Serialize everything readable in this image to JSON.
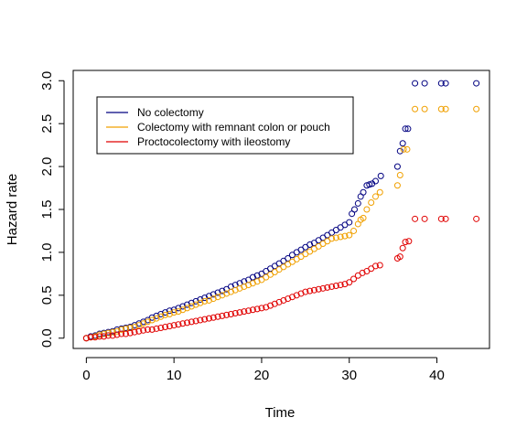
{
  "chart_data": {
    "type": "scatter",
    "title": "",
    "xlabel": "Time",
    "ylabel": "Hazard rate",
    "xlim": [
      -1.5,
      46
    ],
    "ylim": [
      -0.12,
      3.12
    ],
    "xticks": [
      0,
      10,
      20,
      30,
      40
    ],
    "yticks": [
      0.0,
      0.5,
      1.0,
      1.5,
      2.0,
      2.5,
      3.0
    ],
    "xtick_labels": [
      "0",
      "10",
      "20",
      "30",
      "40"
    ],
    "ytick_labels": [
      "0.0",
      "0.5",
      "1.0",
      "1.5",
      "2.0",
      "2.5",
      "3.0"
    ],
    "grid": false,
    "legend": "top-left",
    "series": [
      {
        "name": "No colectomy",
        "color": "#000080",
        "x": [
          0,
          0.5,
          1,
          1.5,
          2,
          2.5,
          3,
          3.5,
          4,
          4.5,
          5,
          5.5,
          6,
          6.5,
          7,
          7.5,
          8,
          8.5,
          9,
          9.5,
          10,
          10.5,
          11,
          11.5,
          12,
          12.5,
          13,
          13.5,
          14,
          14.5,
          15,
          15.5,
          16,
          16.5,
          17,
          17.5,
          18,
          18.5,
          19,
          19.5,
          20,
          20.5,
          21,
          21.5,
          22,
          22.5,
          23,
          23.5,
          24,
          24.5,
          25,
          25.5,
          26,
          26.5,
          27,
          27.5,
          28,
          28.5,
          29,
          29.5,
          30,
          30.3,
          30.6,
          31,
          31.3,
          31.6,
          32,
          32.3,
          32.6,
          33,
          33.6,
          35.5,
          35.8,
          36.1,
          36.4,
          36.7,
          37.5,
          38.6,
          40.5,
          41,
          44.5
        ],
        "y": [
          0,
          0.02,
          0.03,
          0.05,
          0.06,
          0.07,
          0.08,
          0.1,
          0.11,
          0.12,
          0.13,
          0.15,
          0.17,
          0.19,
          0.21,
          0.24,
          0.26,
          0.28,
          0.3,
          0.32,
          0.33,
          0.35,
          0.37,
          0.39,
          0.41,
          0.43,
          0.45,
          0.47,
          0.49,
          0.51,
          0.53,
          0.55,
          0.57,
          0.6,
          0.62,
          0.64,
          0.66,
          0.68,
          0.71,
          0.73,
          0.75,
          0.78,
          0.81,
          0.84,
          0.87,
          0.9,
          0.93,
          0.97,
          1.0,
          1.03,
          1.06,
          1.09,
          1.11,
          1.14,
          1.17,
          1.2,
          1.23,
          1.26,
          1.29,
          1.32,
          1.35,
          1.45,
          1.5,
          1.57,
          1.65,
          1.7,
          1.78,
          1.79,
          1.8,
          1.83,
          1.89,
          2.0,
          2.18,
          2.27,
          2.44,
          2.44,
          2.97,
          2.97,
          2.97,
          2.97,
          2.97
        ]
      },
      {
        "name": "Colectomy with remnant colon or pouch",
        "color": "#f0a000",
        "x": [
          0,
          0.5,
          1,
          1.5,
          2,
          2.5,
          3,
          3.5,
          4,
          4.5,
          5,
          5.5,
          6,
          6.5,
          7,
          7.5,
          8,
          8.5,
          9,
          9.5,
          10,
          10.5,
          11,
          11.5,
          12,
          12.5,
          13,
          13.5,
          14,
          14.5,
          15,
          15.5,
          16,
          16.5,
          17,
          17.5,
          18,
          18.5,
          19,
          19.5,
          20,
          20.5,
          21,
          21.5,
          22,
          22.5,
          23,
          23.5,
          24,
          24.5,
          25,
          25.5,
          26,
          26.5,
          27,
          27.5,
          28,
          28.5,
          29,
          29.5,
          30,
          30.5,
          31,
          31.3,
          31.6,
          32,
          32.5,
          33,
          33.5,
          35.5,
          35.8,
          36.2,
          36.6,
          37.5,
          38.6,
          40.5,
          41,
          44.5
        ],
        "y": [
          0,
          0.01,
          0.02,
          0.04,
          0.05,
          0.06,
          0.07,
          0.08,
          0.1,
          0.11,
          0.12,
          0.13,
          0.15,
          0.17,
          0.19,
          0.21,
          0.23,
          0.25,
          0.27,
          0.28,
          0.3,
          0.31,
          0.33,
          0.35,
          0.37,
          0.39,
          0.41,
          0.43,
          0.44,
          0.46,
          0.48,
          0.5,
          0.52,
          0.54,
          0.56,
          0.58,
          0.6,
          0.62,
          0.64,
          0.66,
          0.68,
          0.71,
          0.74,
          0.77,
          0.8,
          0.83,
          0.86,
          0.89,
          0.92,
          0.95,
          0.98,
          1.01,
          1.04,
          1.07,
          1.1,
          1.13,
          1.16,
          1.17,
          1.18,
          1.19,
          1.2,
          1.25,
          1.33,
          1.38,
          1.4,
          1.5,
          1.58,
          1.65,
          1.7,
          1.78,
          1.9,
          2.2,
          2.2,
          2.67,
          2.67,
          2.67,
          2.67,
          2.67
        ]
      },
      {
        "name": "Proctocolectomy with ileostomy",
        "color": "#e00000",
        "x": [
          0,
          0.5,
          1,
          1.5,
          2,
          2.5,
          3,
          3.5,
          4,
          4.5,
          5,
          5.5,
          6,
          6.5,
          7,
          7.5,
          8,
          8.5,
          9,
          9.5,
          10,
          10.5,
          11,
          11.5,
          12,
          12.5,
          13,
          13.5,
          14,
          14.5,
          15,
          15.5,
          16,
          16.5,
          17,
          17.5,
          18,
          18.5,
          19,
          19.5,
          20,
          20.5,
          21,
          21.5,
          22,
          22.5,
          23,
          23.5,
          24,
          24.5,
          25,
          25.5,
          26,
          26.5,
          27,
          27.5,
          28,
          28.5,
          29,
          29.5,
          30,
          30.5,
          31,
          31.5,
          32,
          32.5,
          33,
          33.5,
          35.5,
          35.8,
          36.1,
          36.4,
          36.8,
          37.5,
          38.6,
          40.5,
          41,
          44.5
        ],
        "y": [
          0,
          0.01,
          0.01,
          0.02,
          0.02,
          0.03,
          0.03,
          0.04,
          0.05,
          0.05,
          0.06,
          0.07,
          0.08,
          0.09,
          0.1,
          0.1,
          0.11,
          0.12,
          0.13,
          0.14,
          0.15,
          0.16,
          0.17,
          0.18,
          0.19,
          0.2,
          0.21,
          0.22,
          0.23,
          0.24,
          0.25,
          0.26,
          0.27,
          0.28,
          0.29,
          0.3,
          0.31,
          0.32,
          0.33,
          0.34,
          0.35,
          0.36,
          0.38,
          0.4,
          0.42,
          0.44,
          0.46,
          0.48,
          0.5,
          0.52,
          0.54,
          0.55,
          0.56,
          0.57,
          0.58,
          0.59,
          0.6,
          0.61,
          0.62,
          0.63,
          0.65,
          0.69,
          0.73,
          0.76,
          0.78,
          0.81,
          0.84,
          0.85,
          0.93,
          0.95,
          1.05,
          1.12,
          1.13,
          1.39,
          1.39,
          1.39,
          1.39,
          1.39
        ]
      }
    ]
  }
}
